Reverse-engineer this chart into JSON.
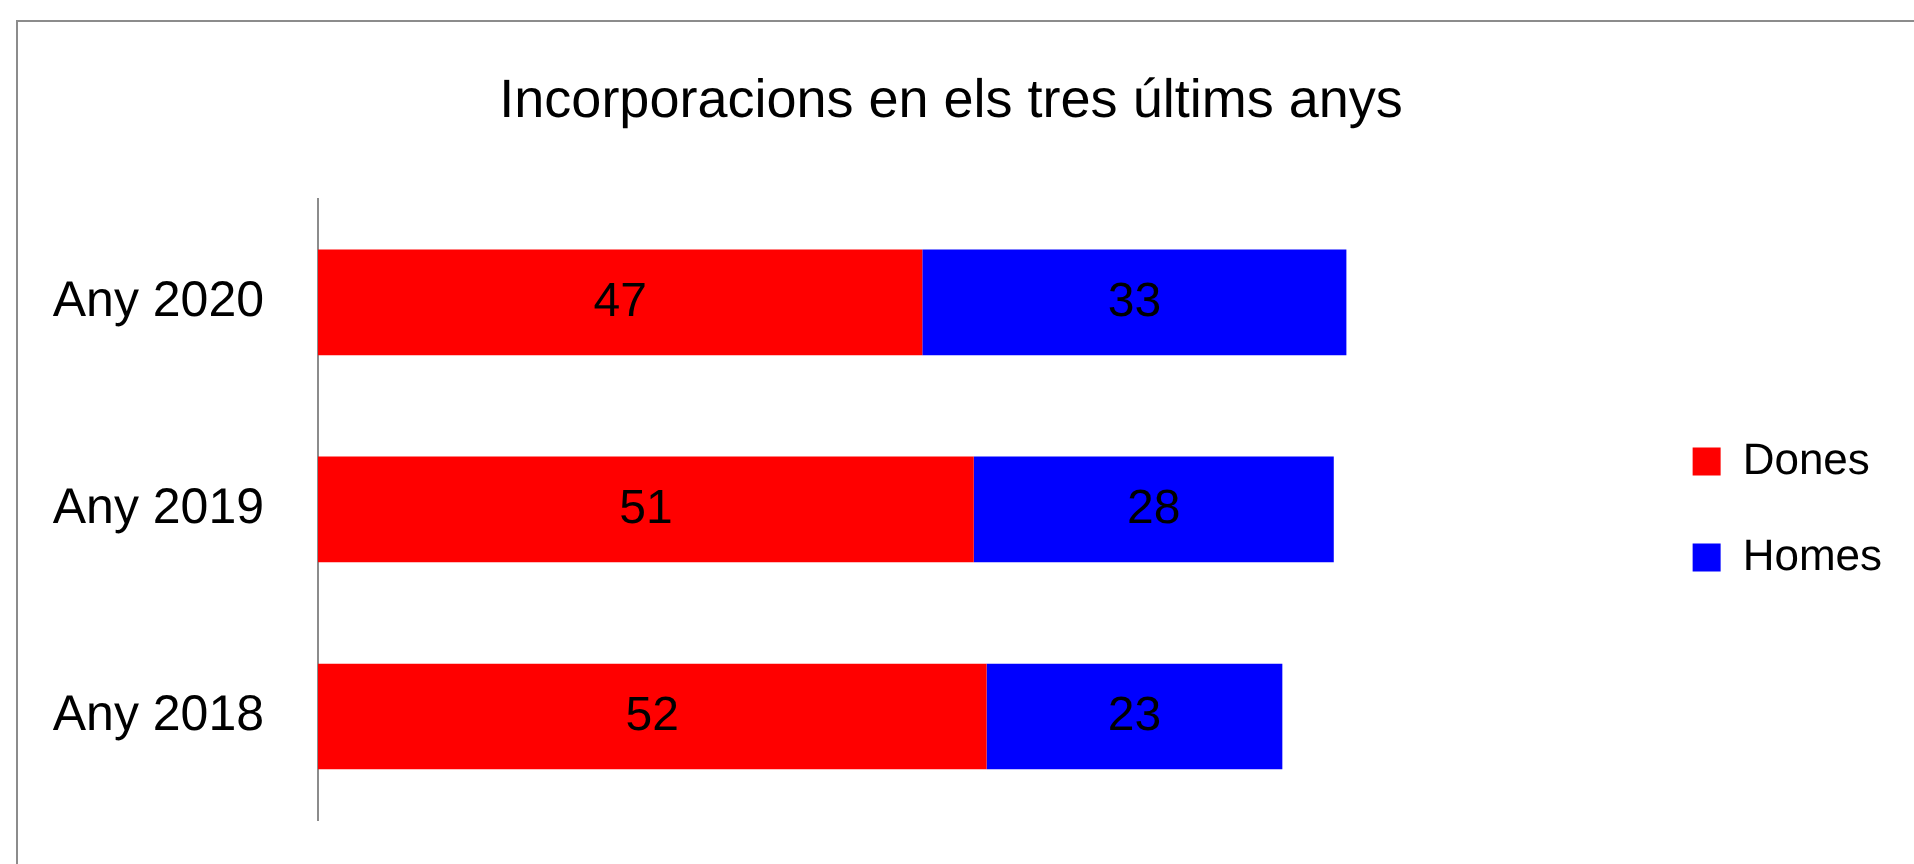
{
  "chart_data": {
    "type": "bar",
    "orientation": "horizontal",
    "stacked": true,
    "title": "Incorporacions en els tres últims anys",
    "categories": [
      "Any 2020",
      "Any 2019",
      "Any 2018"
    ],
    "series": [
      {
        "name": "Dones",
        "color": "#ff0000",
        "values": [
          47,
          51,
          52
        ]
      },
      {
        "name": "Homes",
        "color": "#0000ff",
        "values": [
          33,
          28,
          23
        ]
      }
    ],
    "data_labels": true,
    "legend": "right",
    "tick_labels": "y"
  }
}
